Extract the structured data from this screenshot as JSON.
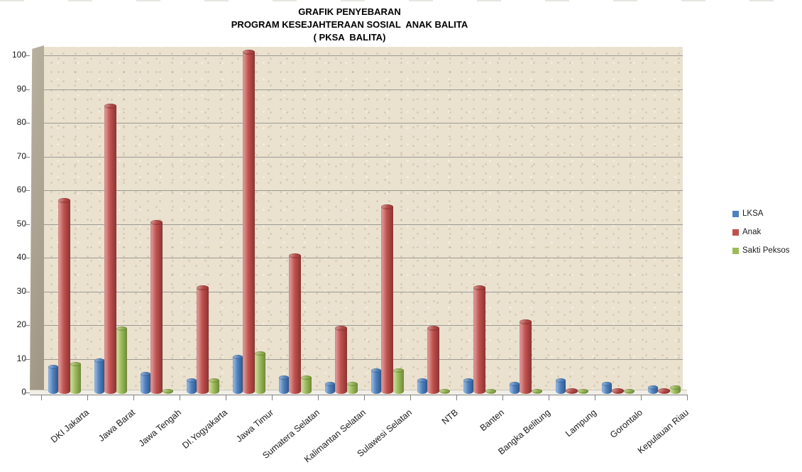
{
  "title": {
    "line1": "GRAFIK PENYEBARAN",
    "line2": "PROGRAM KESEJAHTERAAN SOSIAL  ANAK BALITA",
    "line3": "( PKSA  BALITA)"
  },
  "legend": {
    "items": [
      {
        "label": "LKSA",
        "color": "#4F81BD"
      },
      {
        "label": "Anak",
        "color": "#C0504D"
      },
      {
        "label": "Sakti Peksos",
        "color": "#9BBB59"
      }
    ]
  },
  "chart_data": {
    "type": "bar",
    "subtype": "3d-cylinder",
    "title": "GRAFIK PENYEBARAN PROGRAM KESEJAHTERAAN SOSIAL ANAK BALITA ( PKSA BALITA)",
    "categories": [
      "DKI Jakarta",
      "Jawa Barat",
      "Jawa Tengah",
      "DI.Yogyakarta",
      "Jawa Timur",
      "Sumatera Selatan",
      "Kalimantan Selatan",
      "Sulawesi Selatan",
      "NTB",
      "Banten",
      "Bangka Belitung",
      "Lampung",
      "Gorontalo",
      "Kepulauan Riau"
    ],
    "series": [
      {
        "name": "LKSA",
        "color": "#4F81BD",
        "values": [
          7.5,
          9.5,
          5.5,
          3.5,
          10.5,
          4.5,
          2.5,
          6.5,
          3.5,
          3.5,
          2.5,
          3.5,
          2.5,
          1.5
        ]
      },
      {
        "name": "Anak",
        "color": "#C0504D",
        "values": [
          57,
          85,
          50.5,
          31,
          101,
          40.5,
          19,
          55,
          19,
          31,
          21,
          0.5,
          0.5,
          0.5
        ]
      },
      {
        "name": "Sakti Peksos",
        "color": "#9BBB59",
        "values": [
          8.5,
          19,
          0.5,
          3.5,
          11.5,
          4.5,
          2.5,
          6.5,
          0.5,
          0.5,
          0.5,
          0.5,
          0.5,
          1.5
        ]
      }
    ],
    "xlabel": "",
    "ylabel": "",
    "ylim": [
      0,
      100
    ],
    "yticks": [
      0,
      10,
      20,
      30,
      40,
      50,
      60,
      70,
      80,
      90,
      100
    ],
    "grid": true,
    "legend_position": "right",
    "plot_bg_color": "#EAE1CF",
    "wall_color": "#ABA290",
    "gridline_color": "#9C9A93"
  }
}
